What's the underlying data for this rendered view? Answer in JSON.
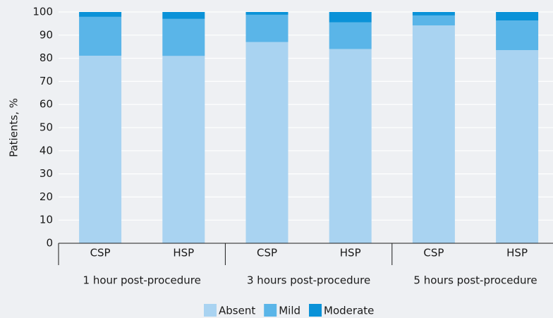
{
  "chart_data": {
    "type": "stacked_bar",
    "y_label": "Patients, %",
    "categories": [
      "CSP",
      "HSP",
      "CSP",
      "HSP",
      "CSP",
      "HSP"
    ],
    "groups": [
      "1 hour post-procedure",
      "3 hours post-procedure",
      "5 hours post-procedure"
    ],
    "series": [
      {
        "name": "Absent",
        "color": "#a9d3f1",
        "values": [
          81.1,
          81,
          87,
          84,
          94.2,
          83.5
        ]
      },
      {
        "name": "Mild",
        "color": "#5ab5e8",
        "values": [
          16.8,
          16,
          11.8,
          11.5,
          4.3,
          12.8
        ]
      },
      {
        "name": "Moderate",
        "color": "#0a92d8",
        "values": [
          2.1,
          3,
          1.2,
          4.5,
          1.5,
          3.7
        ]
      }
    ],
    "ylim": [
      0,
      100
    ],
    "yticks": [
      0,
      10,
      20,
      30,
      40,
      50,
      60,
      70,
      80,
      90,
      100
    ],
    "grid": true,
    "legend": "bottom"
  }
}
